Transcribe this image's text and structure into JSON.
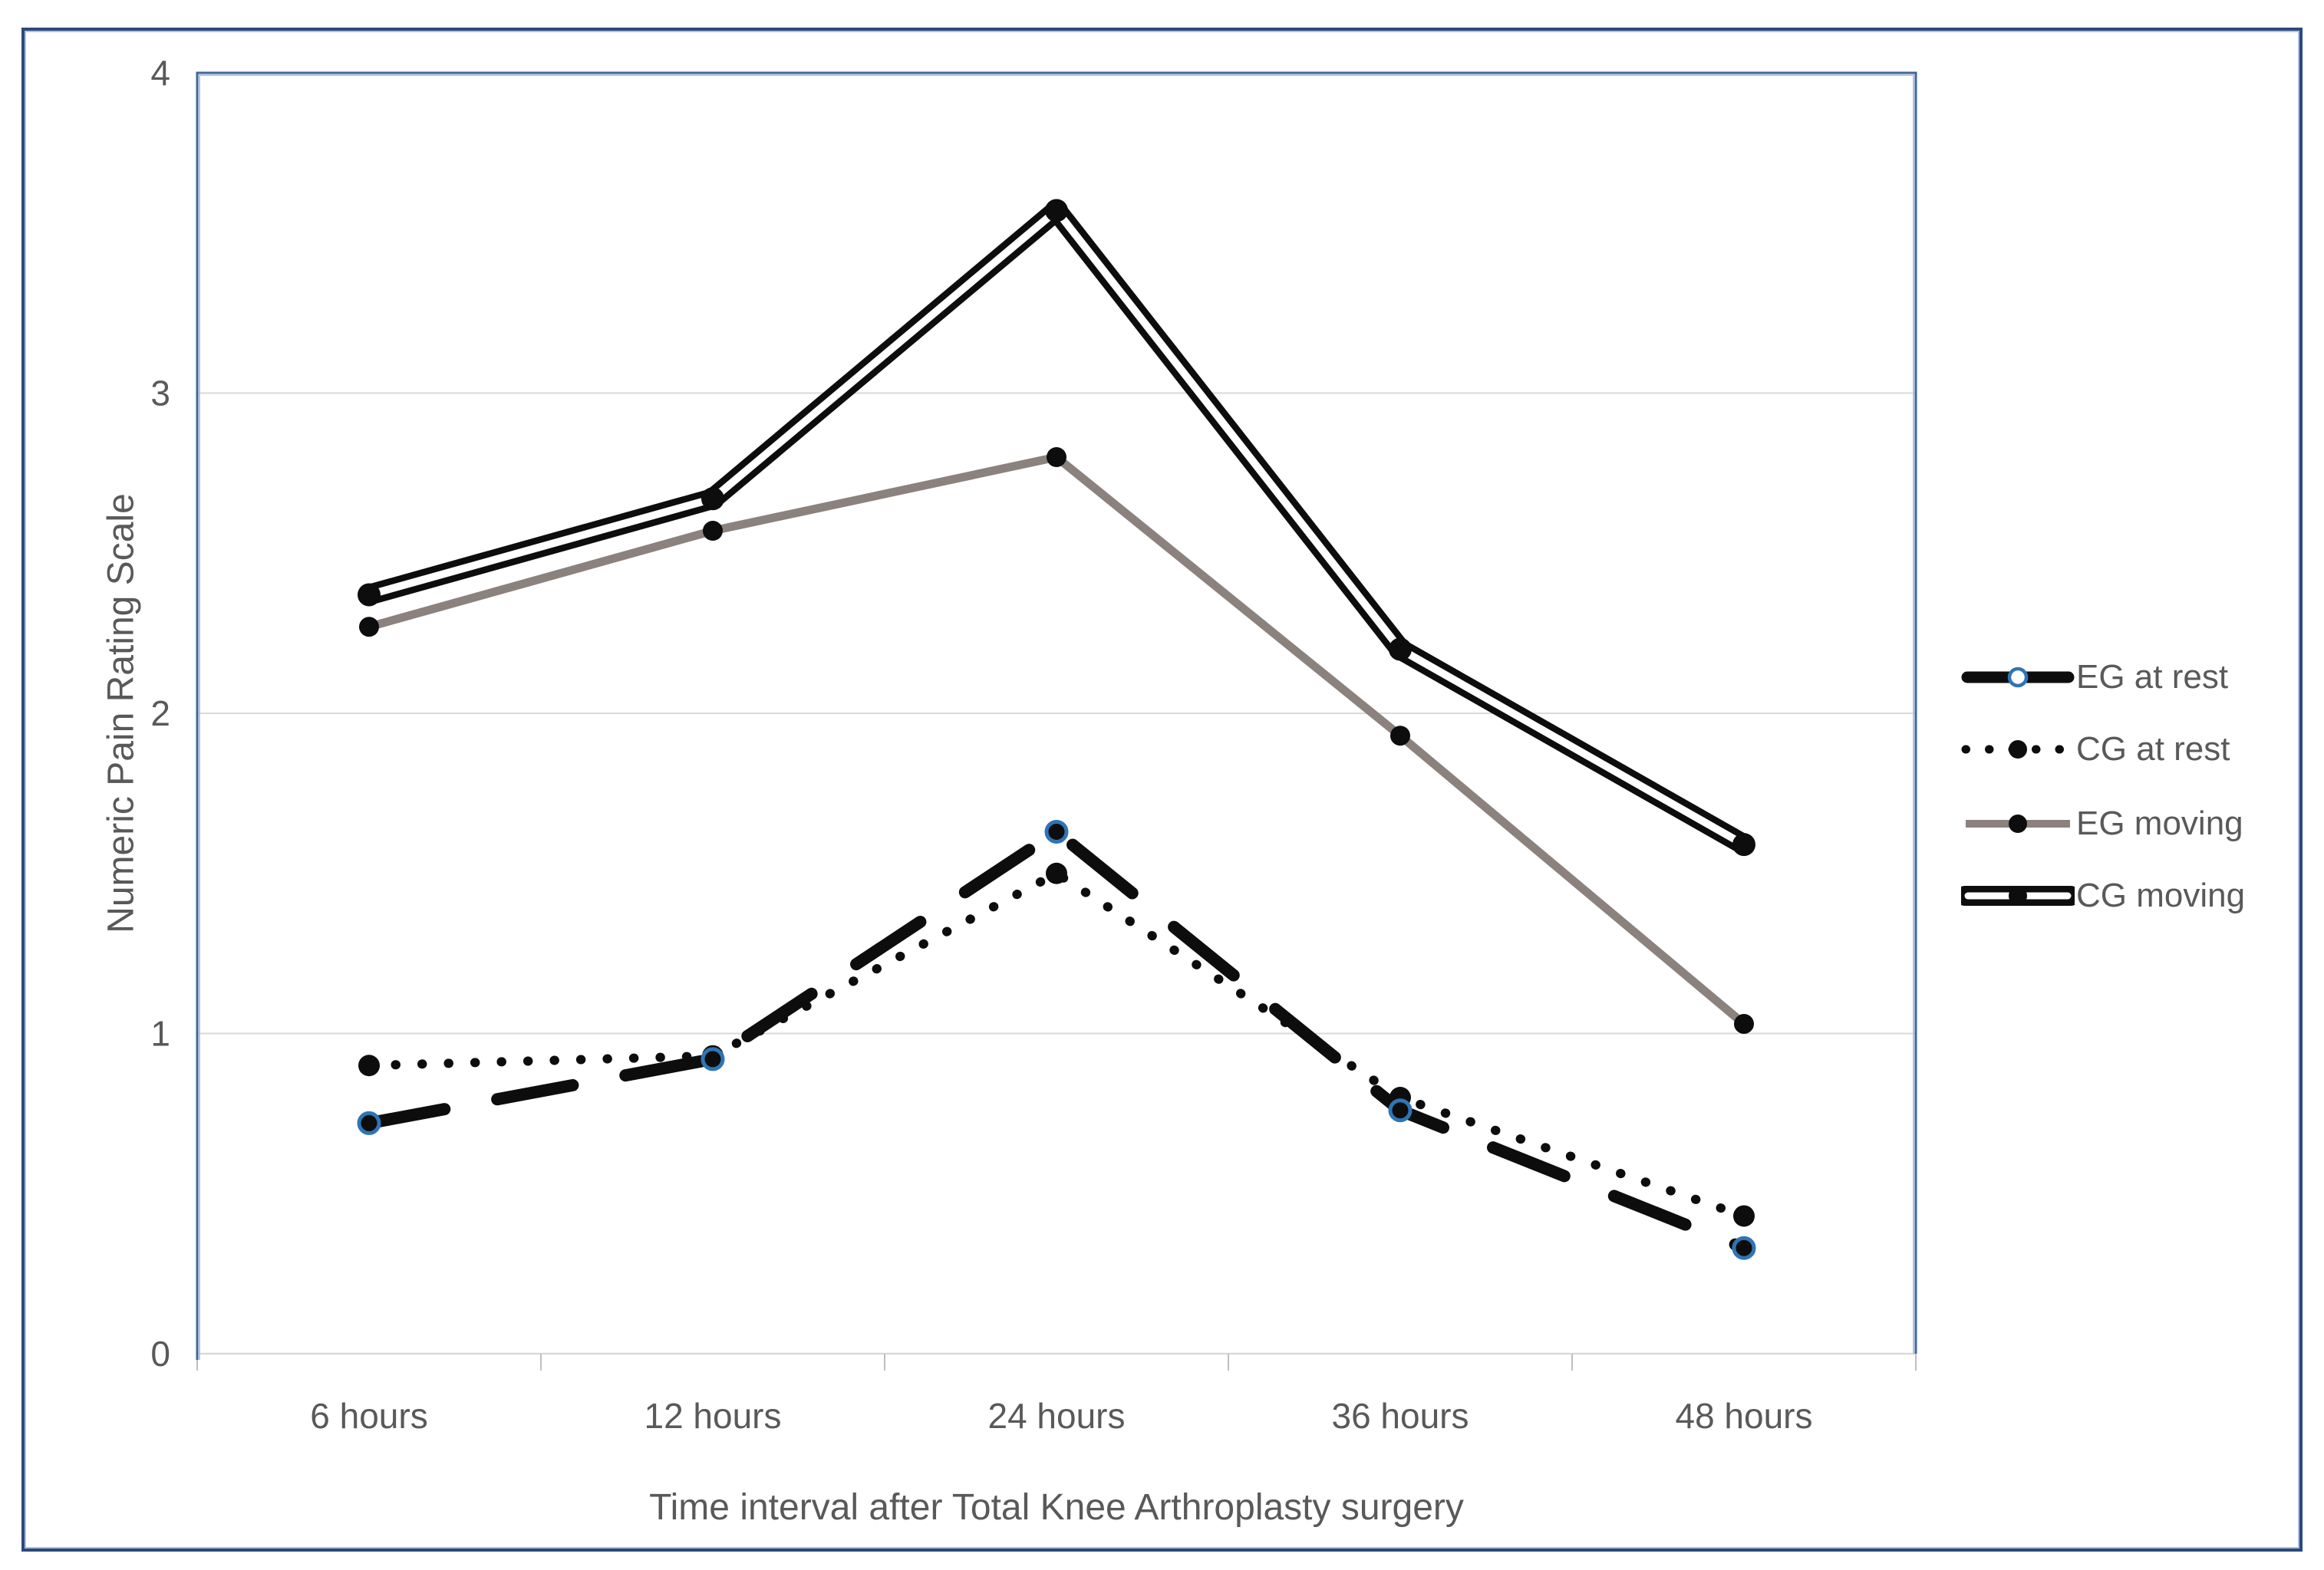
{
  "chart_data": {
    "type": "line",
    "title": "",
    "categories": [
      "6 hours",
      "12 hours",
      "24 hours",
      "36 hours",
      "48 hours"
    ],
    "series": [
      {
        "name": "EG at rest",
        "values": [
          0.72,
          0.92,
          1.63,
          0.76,
          0.33
        ],
        "line_style": "thick-dash",
        "color": "#0D0D0D",
        "marker": "open-circle",
        "marker_color": "#2E75B6"
      },
      {
        "name": "CG at rest",
        "values": [
          0.9,
          0.93,
          1.5,
          0.8,
          0.43
        ],
        "line_style": "dotted",
        "color": "#0D0D0D",
        "marker": "filled-circle",
        "marker_color": "#0D0D0D"
      },
      {
        "name": "EG moving",
        "values": [
          2.27,
          2.57,
          2.8,
          1.93,
          1.03
        ],
        "line_style": "solid",
        "color": "#8B827E",
        "marker": "filled-circle",
        "marker_color": "#0D0D0D"
      },
      {
        "name": "CG moving",
        "values": [
          2.37,
          2.67,
          3.57,
          2.2,
          1.59
        ],
        "line_style": "double-line",
        "color": "#0D0D0D",
        "marker": "filled-circle",
        "marker_color": "#0D0D0D"
      }
    ],
    "xlabel": "Time interval after Total Knee Arthroplasty surgery",
    "ylabel": "Numeric Pain Rating Scale",
    "ylim": [
      0,
      4
    ],
    "yticks": [
      "0",
      "1",
      "2",
      "3",
      "4"
    ],
    "grid": "horizontal",
    "legend_position": "right"
  },
  "colors": {
    "background": "#FFFFFF",
    "axis_text": "#595959",
    "gridline": "#D9D9D9",
    "tick_mark": "#BFBFBF",
    "plot_border": "#40669B",
    "plot_border_inner": "#B6C4DC",
    "outer_border": "#2B4A7D",
    "series_black": "#0D0D0D",
    "series_gray": "#8B827E",
    "marker_blue_ring": "#2E75B6",
    "white": "#FFFFFF"
  }
}
